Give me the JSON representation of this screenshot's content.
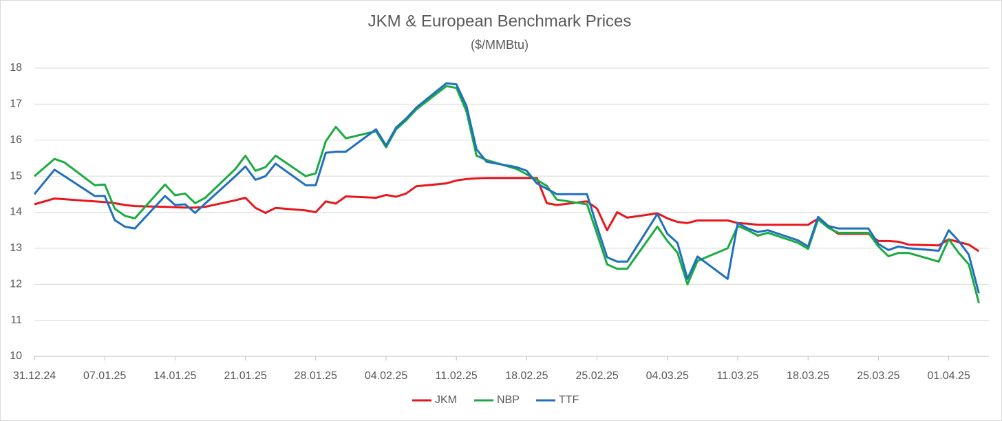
{
  "chart_data": {
    "type": "line",
    "title": "JKM & European Benchmark Prices",
    "subtitle": "($/MMBtu)",
    "x": [
      "31.12.24",
      "02.01.25",
      "03.01.25",
      "06.01.25",
      "07.01.25",
      "08.01.25",
      "09.01.25",
      "10.01.25",
      "13.01.25",
      "14.01.25",
      "15.01.25",
      "16.01.25",
      "17.01.25",
      "20.01.25",
      "21.01.25",
      "22.01.25",
      "23.01.25",
      "24.01.25",
      "27.01.25",
      "28.01.25",
      "29.01.25",
      "30.01.25",
      "31.01.25",
      "03.02.25",
      "04.02.25",
      "05.02.25",
      "06.02.25",
      "07.02.25",
      "10.02.25",
      "11.02.25",
      "12.02.25",
      "13.02.25",
      "14.02.25",
      "17.02.25",
      "18.02.25",
      "19.02.25",
      "20.02.25",
      "21.02.25",
      "24.02.25",
      "25.02.25",
      "26.02.25",
      "27.02.25",
      "28.02.25",
      "03.03.25",
      "04.03.25",
      "05.03.25",
      "06.03.25",
      "07.03.25",
      "10.03.25",
      "11.03.25",
      "12.03.25",
      "13.03.25",
      "14.03.25",
      "17.03.25",
      "18.03.25",
      "19.03.25",
      "20.03.25",
      "21.03.25",
      "24.03.25",
      "25.03.25",
      "26.03.25",
      "27.03.25",
      "28.03.25",
      "31.03.25",
      "01.04.25",
      "02.04.25",
      "03.04.25",
      "04.04.25"
    ],
    "series": [
      {
        "name": "JKM",
        "color": "#e8161b",
        "values": [
          14.22,
          14.38,
          14.36,
          14.3,
          14.28,
          14.25,
          14.2,
          14.17,
          14.15,
          14.14,
          14.13,
          14.13,
          14.15,
          14.33,
          14.4,
          14.12,
          13.98,
          14.12,
          14.05,
          14.0,
          14.3,
          14.24,
          14.44,
          14.4,
          14.48,
          14.43,
          14.52,
          14.72,
          14.8,
          14.88,
          14.92,
          14.94,
          14.95,
          14.95,
          14.95,
          14.95,
          14.25,
          14.2,
          14.3,
          14.1,
          13.5,
          14.0,
          13.85,
          13.97,
          13.83,
          13.73,
          13.7,
          13.77,
          13.77,
          13.7,
          13.68,
          13.65,
          13.65,
          13.65,
          13.65,
          13.82,
          13.6,
          13.4,
          13.4,
          13.2,
          13.2,
          13.18,
          13.1,
          13.08,
          13.25,
          13.17,
          13.1,
          12.92
        ]
      },
      {
        "name": "NBP",
        "color": "#1aab40",
        "values": [
          15.0,
          15.48,
          15.38,
          14.75,
          14.77,
          14.1,
          13.9,
          13.83,
          14.77,
          14.47,
          14.52,
          14.25,
          14.4,
          15.2,
          15.57,
          15.15,
          15.25,
          15.57,
          15.0,
          15.08,
          15.97,
          16.37,
          16.05,
          16.25,
          15.8,
          16.3,
          16.55,
          16.85,
          17.5,
          17.45,
          16.8,
          15.57,
          15.45,
          15.2,
          15.05,
          14.9,
          14.73,
          14.35,
          14.22,
          13.4,
          12.55,
          12.43,
          12.43,
          13.6,
          13.2,
          12.88,
          12.0,
          12.65,
          13.0,
          13.62,
          13.5,
          13.35,
          13.43,
          13.15,
          12.98,
          13.8,
          13.57,
          13.43,
          13.43,
          13.05,
          12.78,
          12.87,
          12.87,
          12.63,
          13.25,
          12.87,
          12.55,
          11.48
        ]
      },
      {
        "name": "TTF",
        "color": "#1f6fbf",
        "values": [
          14.5,
          15.18,
          15.0,
          14.45,
          14.45,
          13.78,
          13.6,
          13.55,
          14.45,
          14.2,
          14.22,
          13.98,
          14.24,
          15.0,
          15.27,
          14.9,
          15.0,
          15.35,
          14.75,
          14.75,
          15.65,
          15.68,
          15.68,
          16.3,
          15.85,
          16.35,
          16.6,
          16.9,
          17.58,
          17.55,
          16.95,
          15.75,
          15.4,
          15.25,
          15.15,
          14.8,
          14.65,
          14.5,
          14.5,
          13.6,
          12.75,
          12.63,
          12.63,
          13.95,
          13.4,
          13.15,
          12.15,
          12.77,
          12.15,
          13.7,
          13.55,
          13.45,
          13.5,
          13.22,
          13.05,
          13.87,
          13.62,
          13.55,
          13.55,
          13.12,
          12.95,
          13.05,
          13.0,
          12.93,
          13.5,
          13.2,
          12.82,
          11.75
        ]
      }
    ],
    "xlim": [
      "31.12.24",
      "05.04.25"
    ],
    "xticks": [
      "31.12.24",
      "07.01.25",
      "14.01.25",
      "21.01.25",
      "28.01.25",
      "04.02.25",
      "11.02.25",
      "18.02.25",
      "25.02.25",
      "04.03.25",
      "11.03.25",
      "18.03.25",
      "25.03.25",
      "01.04.25"
    ],
    "ylim": [
      10,
      18
    ],
    "yticks": [
      10,
      11,
      12,
      13,
      14,
      15,
      16,
      17,
      18
    ],
    "grid": true,
    "legend": "bottom"
  }
}
